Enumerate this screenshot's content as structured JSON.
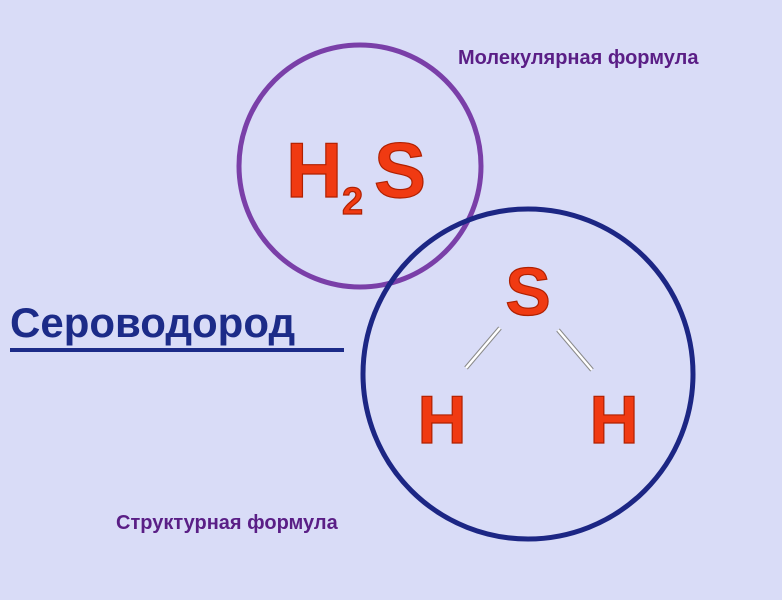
{
  "title": "Сероводород",
  "molecular": {
    "label": "Молекулярная формула",
    "formula_h": "H",
    "formula_sub": "2",
    "formula_s": "S"
  },
  "structural": {
    "label": "Структурная формула",
    "center_atom": "S",
    "left_atom": "H",
    "right_atom": "H"
  },
  "colors": {
    "background": "#d9dcf7",
    "molecular_circle": "#7a3fa8",
    "structural_circle": "#1c2684",
    "atom_text": "#f03a12",
    "label_text": "#5a1e86",
    "title_text": "#1c2b88"
  }
}
